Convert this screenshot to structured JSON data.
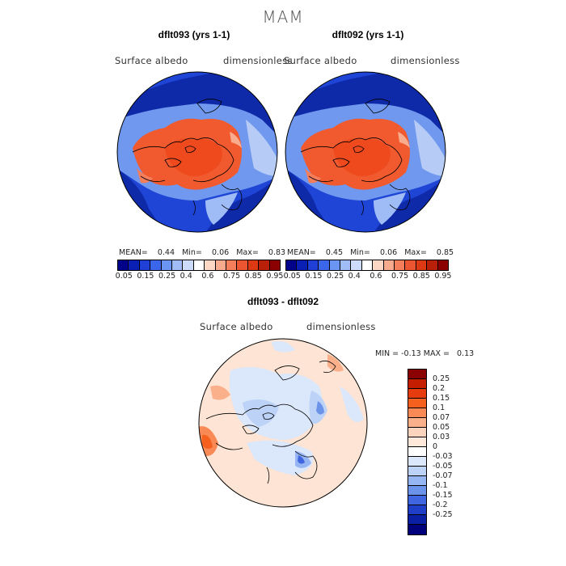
{
  "figure": {
    "title": "MAM"
  },
  "panels": [
    {
      "title": "dflt093 (yrs 1-1)",
      "variable": "Surface albedo",
      "units": "dimensionless",
      "stats": {
        "mean_label": "MEAN=",
        "mean": "0.44",
        "min_label": "Min=",
        "min": "0.06",
        "max_label": "Max=",
        "max": "0.83"
      }
    },
    {
      "title": "dflt092 (yrs 1-1)",
      "variable": "Surface albedo",
      "units": "dimensionless",
      "stats": {
        "mean_label": "MEAN=",
        "mean": "0.45",
        "min_label": "Min=",
        "min": "0.06",
        "max_label": "Max=",
        "max": "0.85"
      }
    }
  ],
  "albedo_colorbar": {
    "colors": [
      "#00008b",
      "#0a1fb3",
      "#1f3fd6",
      "#3b66ea",
      "#6b95f2",
      "#9fbcf7",
      "#cddcfb",
      "#ffffff",
      "#fcd7c6",
      "#f8ab8d",
      "#f47e5c",
      "#ec5532",
      "#dd3a14",
      "#b8200a",
      "#8b0000"
    ],
    "tick_labels": [
      "0.05",
      "0.15",
      "0.25",
      "0.4",
      "0.6",
      "0.75",
      "0.85",
      "0.95"
    ]
  },
  "difference": {
    "title": "dflt093 - dflt092",
    "variable": "Surface albedo",
    "units": "dimensionless",
    "stats": {
      "min_label": "MIN =",
      "min": "-0.13",
      "max_label": "MAX =",
      "max": "0.13"
    },
    "colorbar": {
      "colors_top_to_bottom": [
        "#8b0000",
        "#c41d00",
        "#e63a0f",
        "#f5601e",
        "#f98a55",
        "#fbb08c",
        "#fcd3bd",
        "#ffe8da",
        "#ffffff",
        "#dbe7fb",
        "#bcd2f7",
        "#95b6f2",
        "#6b93ea",
        "#3f66e0",
        "#1f3fc8",
        "#0b1fa5",
        "#00007d"
      ],
      "labels": [
        "0.25",
        "0.2",
        "0.15",
        "0.1",
        "0.07",
        "0.05",
        "0.03",
        "0",
        "-0.03",
        "-0.05",
        "-0.07",
        "-0.1",
        "-0.15",
        "-0.2",
        "-0.25"
      ]
    }
  }
}
